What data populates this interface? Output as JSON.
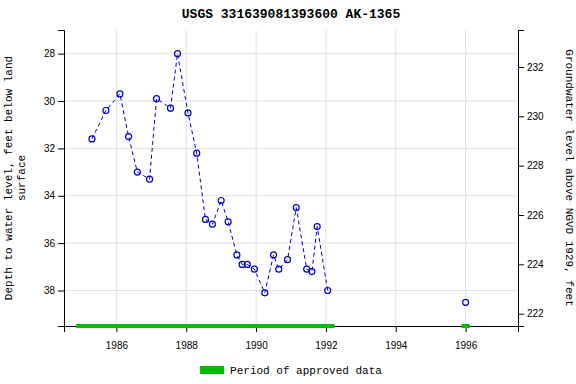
{
  "chart_data": {
    "type": "line",
    "title": "USGS 331639081393600 AK-1365",
    "ylabel": "Depth to water level, feet below land\nsurface",
    "y2label": "Groundwater level above NGVD 1929, feet",
    "series": [
      {
        "x": [
          1985.3,
          1985.7,
          1986.1,
          1986.35,
          1986.6,
          1986.95,
          1987.15,
          1987.55,
          1987.75,
          1988.05,
          1988.3,
          1988.55,
          1988.75,
          1989.0,
          1989.2,
          1989.45,
          1989.6,
          1989.75,
          1989.95,
          1990.25,
          1990.5,
          1990.65,
          1990.9,
          1991.15,
          1991.45,
          1991.6,
          1991.75,
          1992.05
        ],
        "values": [
          31.6,
          30.4,
          29.7,
          31.5,
          33.0,
          33.3,
          29.9,
          30.3,
          28.0,
          30.5,
          32.2,
          35.0,
          35.2,
          34.2,
          35.1,
          36.5,
          36.9,
          36.9,
          37.1,
          38.1,
          36.5,
          37.1,
          36.7,
          34.5,
          37.1,
          37.2,
          35.3,
          38.0
        ],
        "color": "#0000cc",
        "marker": "open-circle",
        "line_style": "dashed"
      },
      {
        "x": [
          1996.0
        ],
        "values": [
          38.5
        ],
        "color": "#0000cc",
        "marker": "open-circle",
        "line_style": "dashed"
      }
    ],
    "approved": {
      "label": "Period of approved data",
      "color": "#00bb00",
      "periods": [
        {
          "start": 1984.85,
          "end": 1992.25
        },
        {
          "start": 1995.88,
          "end": 1996.12
        }
      ]
    },
    "xlim": [
      1984.5,
      1997.5
    ],
    "xticks": [
      1986,
      1988,
      1990,
      1992,
      1994,
      1996
    ],
    "ylim": [
      39.5,
      27.0
    ],
    "yticks": [
      28,
      30,
      32,
      34,
      36,
      38
    ],
    "y2lim": [
      221.5,
      233.5
    ],
    "y2ticks": [
      222,
      224,
      226,
      228,
      230,
      232
    ],
    "grid": true,
    "legend": "bottom"
  }
}
